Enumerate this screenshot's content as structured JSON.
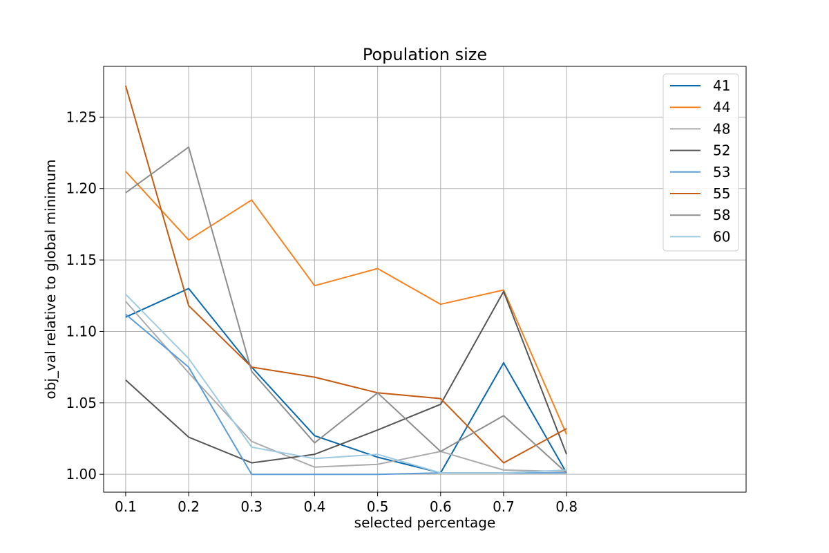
{
  "chart_data": {
    "type": "line",
    "title": "Population size",
    "xlabel": "selected percentage",
    "ylabel": "obj_val relative to global minimum",
    "xlim": [
      0.065,
      1.085
    ],
    "ylim": [
      0.9875,
      1.2855
    ],
    "grid": true,
    "legend_position": "top-right",
    "x": [
      0.1,
      0.2,
      0.3,
      0.4,
      0.5,
      0.6,
      0.7,
      0.8
    ],
    "x_tick_labels": [
      "0.1",
      "0.2",
      "0.3",
      "0.4",
      "0.5",
      "0.6",
      "0.7",
      "0.8"
    ],
    "y_ticks": [
      1.0,
      1.05,
      1.1,
      1.15,
      1.2,
      1.25
    ],
    "y_tick_labels": [
      "1.00",
      "1.05",
      "1.10",
      "1.15",
      "1.20",
      "1.25"
    ],
    "series": [
      {
        "name": "41",
        "color": "#0868ac",
        "values": [
          1.11,
          1.13,
          1.075,
          1.027,
          1.012,
          1.001,
          1.078,
          1.001
        ]
      },
      {
        "name": "44",
        "color": "#f58220",
        "values": [
          1.212,
          1.164,
          1.192,
          1.132,
          1.144,
          1.119,
          1.129,
          1.028
        ]
      },
      {
        "name": "48",
        "color": "#aaaaaa",
        "values": [
          1.121,
          1.071,
          1.023,
          1.005,
          1.007,
          1.016,
          1.003,
          1.002
        ]
      },
      {
        "name": "52",
        "color": "#555555",
        "values": [
          1.066,
          1.026,
          1.008,
          1.014,
          1.031,
          1.049,
          1.128,
          1.014
        ]
      },
      {
        "name": "53",
        "color": "#5b9bd5",
        "values": [
          1.112,
          1.075,
          1.0,
          1.0,
          1.0,
          1.001,
          1.001,
          1.001
        ]
      },
      {
        "name": "55",
        "color": "#c55a11",
        "values": [
          1.272,
          1.118,
          1.075,
          1.068,
          1.057,
          1.053,
          1.008,
          1.032
        ]
      },
      {
        "name": "58",
        "color": "#8c8c8c",
        "values": [
          1.197,
          1.229,
          1.072,
          1.022,
          1.057,
          1.016,
          1.041,
          1.001
        ]
      },
      {
        "name": "60",
        "color": "#9ecae1",
        "values": [
          1.126,
          1.081,
          1.019,
          1.011,
          1.014,
          1.001,
          1.001,
          1.003
        ]
      }
    ]
  }
}
